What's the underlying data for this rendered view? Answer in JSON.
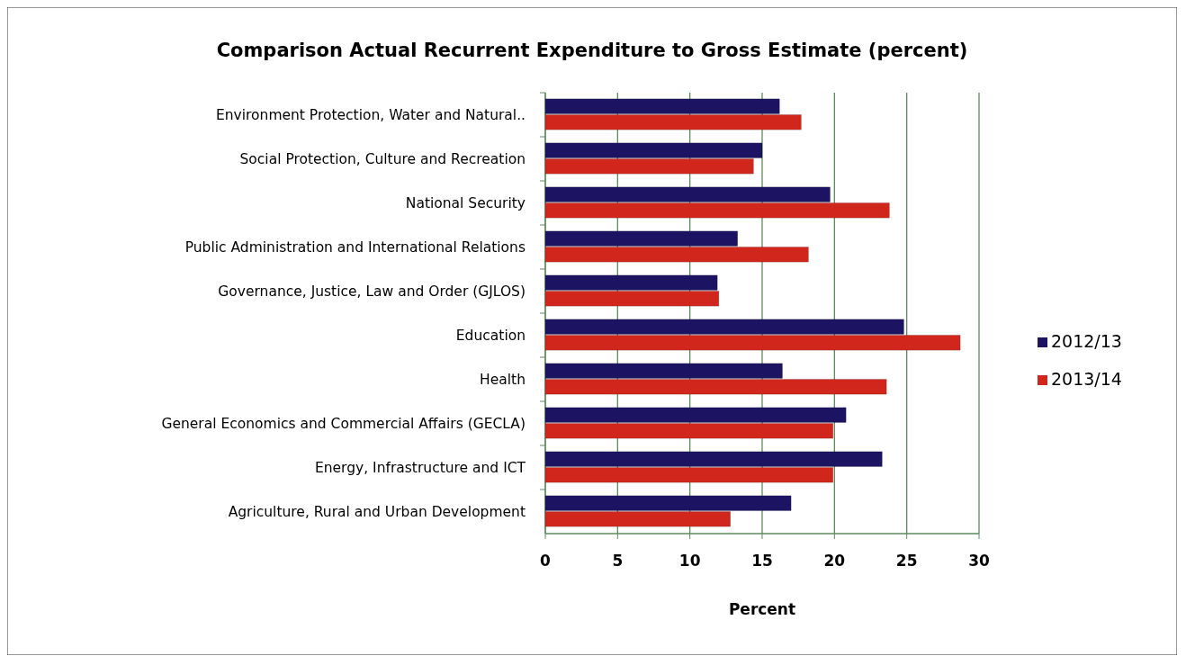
{
  "chart_data": {
    "type": "bar",
    "orientation": "horizontal",
    "title": "Comparison Actual Recurrent  Expenditure to  Gross Estimate (percent)",
    "xlabel": "Percent",
    "categories": [
      "Environment Protection, Water and Natural..",
      "Social Protection, Culture and Recreation",
      "National Security",
      "Public Administration and International Relations",
      "Governance, Justice, Law and Order (GJLOS)",
      "Education",
      "Health",
      "General Economics and Commercial Affairs (GECLA)",
      "Energy, Infrastructure and ICT",
      "Agriculture, Rural and Urban Development"
    ],
    "series": [
      {
        "name": "2012/13",
        "color": "#1c1462",
        "values": [
          16.2,
          15.0,
          19.7,
          13.3,
          11.9,
          24.8,
          16.4,
          20.8,
          23.3,
          17.0
        ]
      },
      {
        "name": "2013/14",
        "color": "#d0261c",
        "values": [
          17.7,
          14.4,
          23.8,
          18.2,
          12.0,
          28.7,
          23.6,
          19.9,
          19.9,
          12.8
        ]
      }
    ],
    "xlim": [
      0,
      30
    ],
    "xticks": [
      0,
      5,
      10,
      15,
      20,
      25,
      30
    ],
    "grid": "x",
    "legend": "right"
  }
}
